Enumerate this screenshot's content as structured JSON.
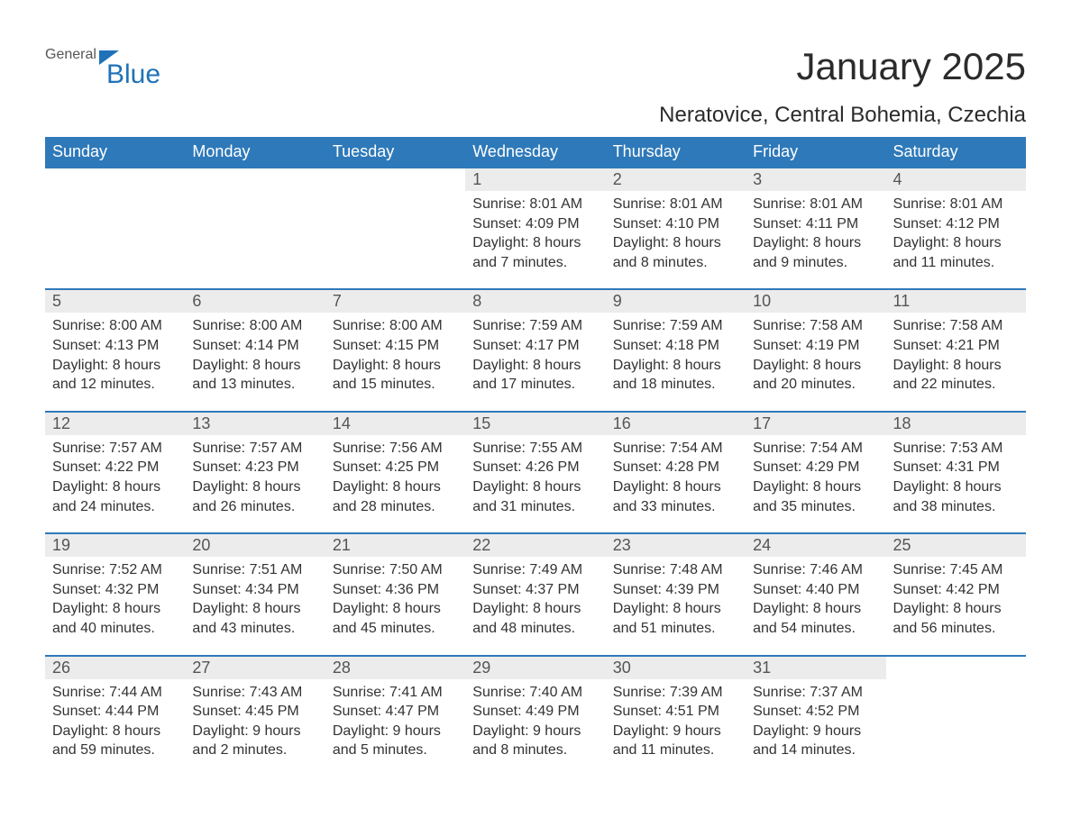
{
  "logo": {
    "text1": "General",
    "text2": "Blue"
  },
  "title": "January 2025",
  "location": "Neratovice, Central Bohemia, Czechia",
  "colors": {
    "header_bg": "#2e79b9",
    "header_text": "#ffffff",
    "daynum_bg": "#ececec",
    "daynum_border": "#2e79b9",
    "body_text": "#333333",
    "logo_accent": "#1f72b8",
    "background": "#ffffff"
  },
  "dayNames": [
    "Sunday",
    "Monday",
    "Tuesday",
    "Wednesday",
    "Thursday",
    "Friday",
    "Saturday"
  ],
  "weeks": [
    [
      null,
      null,
      null,
      {
        "n": "1",
        "sunrise": "8:01 AM",
        "sunset": "4:09 PM",
        "daylight": "8 hours and 7 minutes."
      },
      {
        "n": "2",
        "sunrise": "8:01 AM",
        "sunset": "4:10 PM",
        "daylight": "8 hours and 8 minutes."
      },
      {
        "n": "3",
        "sunrise": "8:01 AM",
        "sunset": "4:11 PM",
        "daylight": "8 hours and 9 minutes."
      },
      {
        "n": "4",
        "sunrise": "8:01 AM",
        "sunset": "4:12 PM",
        "daylight": "8 hours and 11 minutes."
      }
    ],
    [
      {
        "n": "5",
        "sunrise": "8:00 AM",
        "sunset": "4:13 PM",
        "daylight": "8 hours and 12 minutes."
      },
      {
        "n": "6",
        "sunrise": "8:00 AM",
        "sunset": "4:14 PM",
        "daylight": "8 hours and 13 minutes."
      },
      {
        "n": "7",
        "sunrise": "8:00 AM",
        "sunset": "4:15 PM",
        "daylight": "8 hours and 15 minutes."
      },
      {
        "n": "8",
        "sunrise": "7:59 AM",
        "sunset": "4:17 PM",
        "daylight": "8 hours and 17 minutes."
      },
      {
        "n": "9",
        "sunrise": "7:59 AM",
        "sunset": "4:18 PM",
        "daylight": "8 hours and 18 minutes."
      },
      {
        "n": "10",
        "sunrise": "7:58 AM",
        "sunset": "4:19 PM",
        "daylight": "8 hours and 20 minutes."
      },
      {
        "n": "11",
        "sunrise": "7:58 AM",
        "sunset": "4:21 PM",
        "daylight": "8 hours and 22 minutes."
      }
    ],
    [
      {
        "n": "12",
        "sunrise": "7:57 AM",
        "sunset": "4:22 PM",
        "daylight": "8 hours and 24 minutes."
      },
      {
        "n": "13",
        "sunrise": "7:57 AM",
        "sunset": "4:23 PM",
        "daylight": "8 hours and 26 minutes."
      },
      {
        "n": "14",
        "sunrise": "7:56 AM",
        "sunset": "4:25 PM",
        "daylight": "8 hours and 28 minutes."
      },
      {
        "n": "15",
        "sunrise": "7:55 AM",
        "sunset": "4:26 PM",
        "daylight": "8 hours and 31 minutes."
      },
      {
        "n": "16",
        "sunrise": "7:54 AM",
        "sunset": "4:28 PM",
        "daylight": "8 hours and 33 minutes."
      },
      {
        "n": "17",
        "sunrise": "7:54 AM",
        "sunset": "4:29 PM",
        "daylight": "8 hours and 35 minutes."
      },
      {
        "n": "18",
        "sunrise": "7:53 AM",
        "sunset": "4:31 PM",
        "daylight": "8 hours and 38 minutes."
      }
    ],
    [
      {
        "n": "19",
        "sunrise": "7:52 AM",
        "sunset": "4:32 PM",
        "daylight": "8 hours and 40 minutes."
      },
      {
        "n": "20",
        "sunrise": "7:51 AM",
        "sunset": "4:34 PM",
        "daylight": "8 hours and 43 minutes."
      },
      {
        "n": "21",
        "sunrise": "7:50 AM",
        "sunset": "4:36 PM",
        "daylight": "8 hours and 45 minutes."
      },
      {
        "n": "22",
        "sunrise": "7:49 AM",
        "sunset": "4:37 PM",
        "daylight": "8 hours and 48 minutes."
      },
      {
        "n": "23",
        "sunrise": "7:48 AM",
        "sunset": "4:39 PM",
        "daylight": "8 hours and 51 minutes."
      },
      {
        "n": "24",
        "sunrise": "7:46 AM",
        "sunset": "4:40 PM",
        "daylight": "8 hours and 54 minutes."
      },
      {
        "n": "25",
        "sunrise": "7:45 AM",
        "sunset": "4:42 PM",
        "daylight": "8 hours and 56 minutes."
      }
    ],
    [
      {
        "n": "26",
        "sunrise": "7:44 AM",
        "sunset": "4:44 PM",
        "daylight": "8 hours and 59 minutes."
      },
      {
        "n": "27",
        "sunrise": "7:43 AM",
        "sunset": "4:45 PM",
        "daylight": "9 hours and 2 minutes."
      },
      {
        "n": "28",
        "sunrise": "7:41 AM",
        "sunset": "4:47 PM",
        "daylight": "9 hours and 5 minutes."
      },
      {
        "n": "29",
        "sunrise": "7:40 AM",
        "sunset": "4:49 PM",
        "daylight": "9 hours and 8 minutes."
      },
      {
        "n": "30",
        "sunrise": "7:39 AM",
        "sunset": "4:51 PM",
        "daylight": "9 hours and 11 minutes."
      },
      {
        "n": "31",
        "sunrise": "7:37 AM",
        "sunset": "4:52 PM",
        "daylight": "9 hours and 14 minutes."
      },
      null
    ]
  ],
  "labels": {
    "sunrise": "Sunrise: ",
    "sunset": "Sunset: ",
    "daylight": "Daylight: "
  }
}
